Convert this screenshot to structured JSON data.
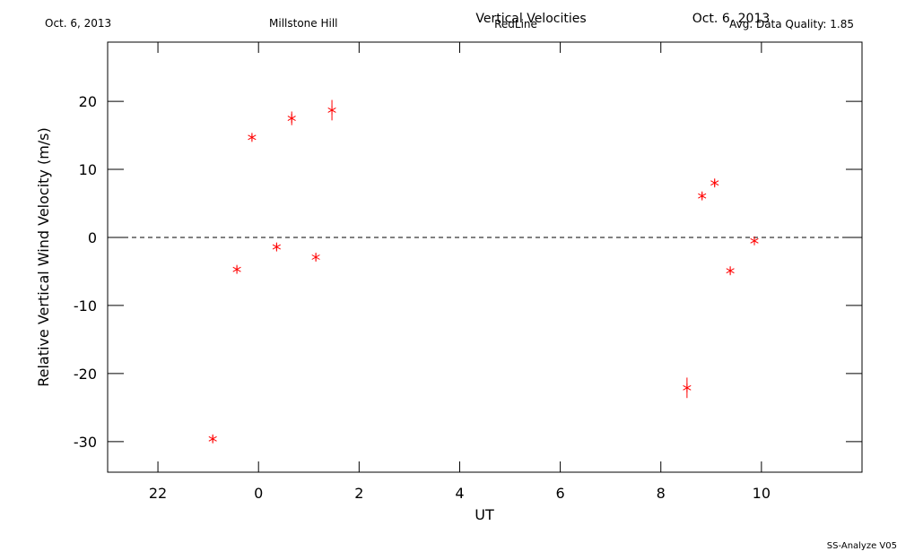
{
  "header": {
    "date_left": "Oct. 6, 2013",
    "site": "Millstone Hill",
    "date_right": "Oct. 6, 2013",
    "quality": "Avg. Data Quality: 1.85"
  },
  "footer": "SS-Analyze V05",
  "chart_data": {
    "type": "scatter",
    "title": "Vertical Velocities",
    "subtitle": "RedLine",
    "x_label": "UT",
    "y_label": "Relative Vertical Wind Velocity (m/s)",
    "xlim": [
      -3,
      12
    ],
    "xticks": [
      {
        "value": -2,
        "label": "22"
      },
      0,
      2,
      4,
      6,
      8,
      10
    ],
    "ylim": [
      -34.5,
      28.7
    ],
    "yticks": [
      -30,
      -20,
      -10,
      0,
      10,
      20
    ],
    "reference_line": 0,
    "series": [
      {
        "name": "RedLine",
        "color": "#ff0000",
        "x": [
          -0.91,
          -0.43,
          -0.13,
          0.36,
          0.66,
          1.14,
          1.46,
          8.52,
          8.82,
          9.07,
          9.38,
          9.86
        ],
        "values": [
          -29.6,
          -4.7,
          14.7,
          -1.4,
          17.5,
          -2.9,
          18.7,
          -22.1,
          6.1,
          8.0,
          -4.9,
          -0.5
        ],
        "errors": [
          0.5,
          0.5,
          0.5,
          0.5,
          1.0,
          0.5,
          1.5,
          1.5,
          0.5,
          0.5,
          0.5,
          0.5
        ]
      }
    ]
  }
}
